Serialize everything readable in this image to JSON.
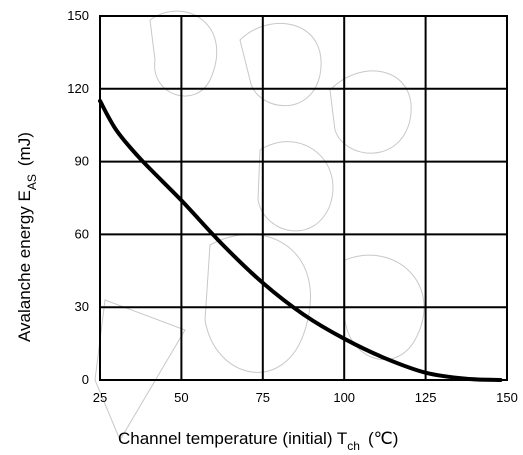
{
  "chart_data": {
    "type": "line",
    "title": "",
    "xlabel": {
      "main": "Channel temperature (initial)  T",
      "sub": "ch",
      "unit": "(℃)"
    },
    "ylabel": {
      "main": "Avalanche energy  E",
      "sub": "AS",
      "unit": "(mJ)"
    },
    "xlim": [
      25,
      150
    ],
    "ylim": [
      0,
      150
    ],
    "x_ticks": [
      "25",
      "50",
      "75",
      "100",
      "125",
      "150"
    ],
    "y_ticks": [
      "0",
      "30",
      "60",
      "90",
      "120",
      "150"
    ],
    "grid": true,
    "legend": "none",
    "series": [
      {
        "color": "#000000",
        "x": [
          25,
          30,
          37.5,
          50,
          62.5,
          75,
          87.5,
          100,
          112.5,
          125,
          137.5,
          148
        ],
        "y": [
          115,
          103,
          91,
          74,
          56,
          40,
          27,
          17,
          9,
          3,
          0.5,
          0
        ]
      }
    ]
  }
}
